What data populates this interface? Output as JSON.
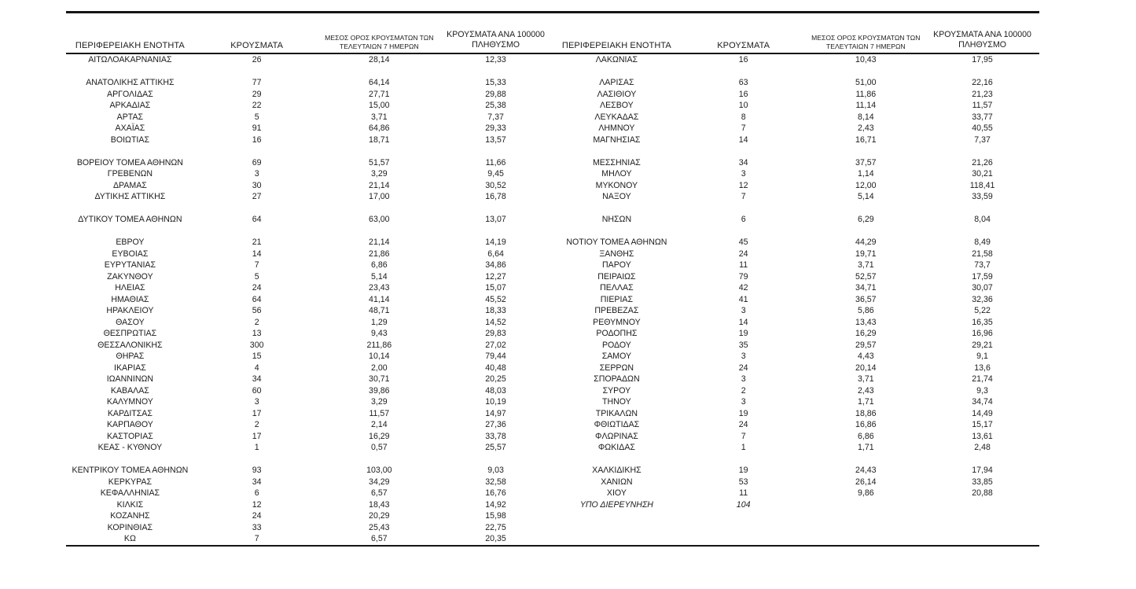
{
  "table": {
    "headers": {
      "region": "ΠΕΡΙΦΕΡΕΙΑΚΗ ΕΝΟΤΗΤΑ",
      "cases": "ΚΡΟΥΣΜΑΤΑ",
      "avg7_line1": "ΜΕΣΟΣ ΟΡΟΣ ΚΡΟΥΣΜΑΤΩΝ ΤΩΝ",
      "avg7_line2": "ΤΕΛΕΥΤΑΙΩΝ 7 ΗΜΕΡΩΝ",
      "per100k_line1": "ΚΡΟΥΣΜΑΤΑ ΑΝΑ 100000",
      "per100k_line2": "ΠΛΗΘΥΣΜΟ"
    },
    "left_rows": [
      {
        "name": "ΑΙΤΩΛΟΑΚΑΡΝΑΝΙΑΣ",
        "cases": "26",
        "avg7": "28,14",
        "per100k": "12,33"
      },
      {
        "spacer": true
      },
      {
        "name": "ΑΝΑΤΟΛΙΚΗΣ ΑΤΤΙΚΗΣ",
        "cases": "77",
        "avg7": "64,14",
        "per100k": "15,33"
      },
      {
        "name": "ΑΡΓΟΛΙΔΑΣ",
        "cases": "29",
        "avg7": "27,71",
        "per100k": "29,88"
      },
      {
        "name": "ΑΡΚΑΔΙΑΣ",
        "cases": "22",
        "avg7": "15,00",
        "per100k": "25,38"
      },
      {
        "name": "ΑΡΤΑΣ",
        "cases": "5",
        "avg7": "3,71",
        "per100k": "7,37"
      },
      {
        "name": "ΑΧΑΪΑΣ",
        "cases": "91",
        "avg7": "64,86",
        "per100k": "29,33"
      },
      {
        "name": "ΒΟΙΩΤΙΑΣ",
        "cases": "16",
        "avg7": "18,71",
        "per100k": "13,57"
      },
      {
        "spacer": true
      },
      {
        "name": "ΒΟΡΕΙΟΥ ΤΟΜΕΑ ΑΘΗΝΩΝ",
        "cases": "69",
        "avg7": "51,57",
        "per100k": "11,66"
      },
      {
        "name": "ΓΡΕΒΕΝΩΝ",
        "cases": "3",
        "avg7": "3,29",
        "per100k": "9,45"
      },
      {
        "name": "ΔΡΑΜΑΣ",
        "cases": "30",
        "avg7": "21,14",
        "per100k": "30,52"
      },
      {
        "name": "ΔΥΤΙΚΗΣ ΑΤΤΙΚΗΣ",
        "cases": "27",
        "avg7": "17,00",
        "per100k": "16,78"
      },
      {
        "spacer": true
      },
      {
        "name": "ΔΥΤΙΚΟΥ ΤΟΜΕΑ ΑΘΗΝΩΝ",
        "cases": "64",
        "avg7": "63,00",
        "per100k": "13,07"
      },
      {
        "spacer": true
      },
      {
        "name": "ΕΒΡΟΥ",
        "cases": "21",
        "avg7": "21,14",
        "per100k": "14,19"
      },
      {
        "name": "ΕΥΒΟΙΑΣ",
        "cases": "14",
        "avg7": "21,86",
        "per100k": "6,64"
      },
      {
        "name": "ΕΥΡΥΤΑΝΙΑΣ",
        "cases": "7",
        "avg7": "6,86",
        "per100k": "34,86"
      },
      {
        "name": "ΖΑΚΥΝΘΟΥ",
        "cases": "5",
        "avg7": "5,14",
        "per100k": "12,27"
      },
      {
        "name": "ΗΛΕΙΑΣ",
        "cases": "24",
        "avg7": "23,43",
        "per100k": "15,07"
      },
      {
        "name": "ΗΜΑΘΙΑΣ",
        "cases": "64",
        "avg7": "41,14",
        "per100k": "45,52"
      },
      {
        "name": "ΗΡΑΚΛΕΙΟΥ",
        "cases": "56",
        "avg7": "48,71",
        "per100k": "18,33"
      },
      {
        "name": "ΘΑΣΟΥ",
        "cases": "2",
        "avg7": "1,29",
        "per100k": "14,52"
      },
      {
        "name": "ΘΕΣΠΡΩΤΙΑΣ",
        "cases": "13",
        "avg7": "9,43",
        "per100k": "29,83"
      },
      {
        "name": "ΘΕΣΣΑΛΟΝΙΚΗΣ",
        "cases": "300",
        "avg7": "211,86",
        "per100k": "27,02"
      },
      {
        "name": "ΘΗΡΑΣ",
        "cases": "15",
        "avg7": "10,14",
        "per100k": "79,44"
      },
      {
        "name": "ΙΚΑΡΙΑΣ",
        "cases": "4",
        "avg7": "2,00",
        "per100k": "40,48"
      },
      {
        "name": "ΙΩΑΝΝΙΝΩΝ",
        "cases": "34",
        "avg7": "30,71",
        "per100k": "20,25"
      },
      {
        "name": "ΚΑΒΑΛΑΣ",
        "cases": "60",
        "avg7": "39,86",
        "per100k": "48,03"
      },
      {
        "name": "ΚΑΛΥΜΝΟΥ",
        "cases": "3",
        "avg7": "3,29",
        "per100k": "10,19"
      },
      {
        "name": "ΚΑΡΔΙΤΣΑΣ",
        "cases": "17",
        "avg7": "11,57",
        "per100k": "14,97"
      },
      {
        "name": "ΚΑΡΠΑΘΟΥ",
        "cases": "2",
        "avg7": "2,14",
        "per100k": "27,36"
      },
      {
        "name": "ΚΑΣΤΟΡΙΑΣ",
        "cases": "17",
        "avg7": "16,29",
        "per100k": "33,78"
      },
      {
        "name": "ΚΕΑΣ - ΚΥΘΝΟΥ",
        "cases": "1",
        "avg7": "0,57",
        "per100k": "25,57"
      },
      {
        "spacer": true
      },
      {
        "name": "ΚΕΝΤΡΙΚΟΥ ΤΟΜΕΑ ΑΘΗΝΩΝ",
        "cases": "93",
        "avg7": "103,00",
        "per100k": "9,03"
      },
      {
        "name": "ΚΕΡΚΥΡΑΣ",
        "cases": "34",
        "avg7": "34,29",
        "per100k": "32,58"
      },
      {
        "name": "ΚΕΦΑΛΛΗΝΙΑΣ",
        "cases": "6",
        "avg7": "6,57",
        "per100k": "16,76"
      },
      {
        "name": "ΚΙΛΚΙΣ",
        "cases": "12",
        "avg7": "18,43",
        "per100k": "14,92"
      },
      {
        "name": "ΚΟΖΑΝΗΣ",
        "cases": "24",
        "avg7": "20,29",
        "per100k": "15,98"
      },
      {
        "name": "ΚΟΡΙΝΘΙΑΣ",
        "cases": "33",
        "avg7": "25,43",
        "per100k": "22,75"
      },
      {
        "name": "ΚΩ",
        "cases": "7",
        "avg7": "6,57",
        "per100k": "20,35"
      }
    ],
    "right_rows": [
      {
        "name": "ΛΑΚΩΝΙΑΣ",
        "cases": "16",
        "avg7": "10,43",
        "per100k": "17,95"
      },
      {
        "spacer": true
      },
      {
        "name": "ΛΑΡΙΣΑΣ",
        "cases": "63",
        "avg7": "51,00",
        "per100k": "22,16"
      },
      {
        "name": "ΛΑΣΙΘΙΟΥ",
        "cases": "16",
        "avg7": "11,86",
        "per100k": "21,23"
      },
      {
        "name": "ΛΕΣΒΟΥ",
        "cases": "10",
        "avg7": "11,14",
        "per100k": "11,57"
      },
      {
        "name": "ΛΕΥΚΑΔΑΣ",
        "cases": "8",
        "avg7": "8,14",
        "per100k": "33,77"
      },
      {
        "name": "ΛΗΜΝΟΥ",
        "cases": "7",
        "avg7": "2,43",
        "per100k": "40,55"
      },
      {
        "name": "ΜΑΓΝΗΣΙΑΣ",
        "cases": "14",
        "avg7": "16,71",
        "per100k": "7,37"
      },
      {
        "spacer": true
      },
      {
        "name": "ΜΕΣΣΗΝΙΑΣ",
        "cases": "34",
        "avg7": "37,57",
        "per100k": "21,26"
      },
      {
        "name": "ΜΗΛΟΥ",
        "cases": "3",
        "avg7": "1,14",
        "per100k": "30,21"
      },
      {
        "name": "ΜΥΚΟΝΟΥ",
        "cases": "12",
        "avg7": "12,00",
        "per100k": "118,41"
      },
      {
        "name": "ΝΑΞΟΥ",
        "cases": "7",
        "avg7": "5,14",
        "per100k": "33,59"
      },
      {
        "spacer": true
      },
      {
        "name": "ΝΗΣΩΝ",
        "cases": "6",
        "avg7": "6,29",
        "per100k": "8,04"
      },
      {
        "spacer": true
      },
      {
        "name": "ΝΟΤΙΟΥ ΤΟΜΕΑ ΑΘΗΝΩΝ",
        "cases": "45",
        "avg7": "44,29",
        "per100k": "8,49"
      },
      {
        "name": "ΞΑΝΘΗΣ",
        "cases": "24",
        "avg7": "19,71",
        "per100k": "21,58"
      },
      {
        "name": "ΠΑΡΟΥ",
        "cases": "11",
        "avg7": "3,71",
        "per100k": "73,7"
      },
      {
        "name": "ΠΕΙΡΑΙΩΣ",
        "cases": "79",
        "avg7": "52,57",
        "per100k": "17,59"
      },
      {
        "name": "ΠΕΛΛΑΣ",
        "cases": "42",
        "avg7": "34,71",
        "per100k": "30,07"
      },
      {
        "name": "ΠΙΕΡΙΑΣ",
        "cases": "41",
        "avg7": "36,57",
        "per100k": "32,36"
      },
      {
        "name": "ΠΡΕΒΕΖΑΣ",
        "cases": "3",
        "avg7": "5,86",
        "per100k": "5,22"
      },
      {
        "name": "ΡΕΘΥΜΝΟΥ",
        "cases": "14",
        "avg7": "13,43",
        "per100k": "16,35"
      },
      {
        "name": "ΡΟΔΟΠΗΣ",
        "cases": "19",
        "avg7": "16,29",
        "per100k": "16,96"
      },
      {
        "name": "ΡΟΔΟΥ",
        "cases": "35",
        "avg7": "29,57",
        "per100k": "29,21"
      },
      {
        "name": "ΣΑΜΟΥ",
        "cases": "3",
        "avg7": "4,43",
        "per100k": "9,1"
      },
      {
        "name": "ΣΕΡΡΩΝ",
        "cases": "24",
        "avg7": "20,14",
        "per100k": "13,6"
      },
      {
        "name": "ΣΠΟΡΑΔΩΝ",
        "cases": "3",
        "avg7": "3,71",
        "per100k": "21,74"
      },
      {
        "name": "ΣΥΡΟΥ",
        "cases": "2",
        "avg7": "2,43",
        "per100k": "9,3"
      },
      {
        "name": "ΤΗΝΟΥ",
        "cases": "3",
        "avg7": "1,71",
        "per100k": "34,74"
      },
      {
        "name": "ΤΡΙΚΑΛΩΝ",
        "cases": "19",
        "avg7": "18,86",
        "per100k": "14,49"
      },
      {
        "name": "ΦΘΙΩΤΙΔΑΣ",
        "cases": "24",
        "avg7": "16,86",
        "per100k": "15,17"
      },
      {
        "name": "ΦΛΩΡΙΝΑΣ",
        "cases": "7",
        "avg7": "6,86",
        "per100k": "13,61"
      },
      {
        "name": "ΦΩΚΙΔΑΣ",
        "cases": "1",
        "avg7": "1,71",
        "per100k": "2,48"
      },
      {
        "spacer": true
      },
      {
        "name": "ΧΑΛΚΙΔΙΚΗΣ",
        "cases": "19",
        "avg7": "24,43",
        "per100k": "17,94"
      },
      {
        "name": "ΧΑΝΙΩΝ",
        "cases": "53",
        "avg7": "26,14",
        "per100k": "33,85"
      },
      {
        "name": "ΧΙΟΥ",
        "cases": "11",
        "avg7": "9,86",
        "per100k": "20,88"
      },
      {
        "name": "ΥΠΟ ΔΙΕΡΕΥΝΗΣΗ",
        "cases": "104",
        "avg7": "",
        "per100k": "",
        "italic": true
      }
    ]
  },
  "colors": {
    "rule": "#151515",
    "text": "#1c1c1c",
    "background": "#ffffff"
  }
}
